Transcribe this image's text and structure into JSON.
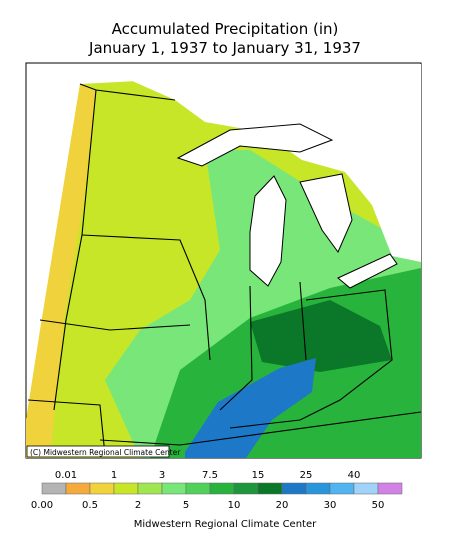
{
  "title": "Accumulated Precipitation (in)",
  "subtitle": "January 1, 1937 to January 31, 1937",
  "map": {
    "credit": "(C) Midwestern Regional Climate Center"
  },
  "legend": {
    "labels": [
      "0.00",
      "0.01",
      "0.5",
      "1",
      "2",
      "3",
      "5",
      "7.5",
      "10",
      "15",
      "20",
      "25",
      "30",
      "40",
      "50"
    ],
    "colors": [
      "#b4b4b4",
      "#f5aa3c",
      "#f0d23c",
      "#c8e628",
      "#a0e650",
      "#78e678",
      "#50d25a",
      "#28b43c",
      "#1e963c",
      "#0a7828",
      "#1e78c8",
      "#2896dc",
      "#50b4f0",
      "#a0d2fa",
      "#d282e6"
    ]
  },
  "footer": "Midwestern Regional Climate Center"
}
